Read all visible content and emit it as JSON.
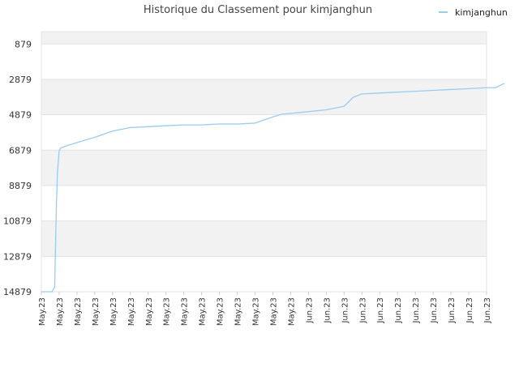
{
  "chart_data": {
    "type": "line",
    "title": "Historique du Classement pour kimjanghun",
    "xlabel": "",
    "ylabel": "",
    "y_inverted": true,
    "ylim": [
      14879,
      179
    ],
    "yticks": [
      879,
      2879,
      4879,
      6879,
      8879,
      10879,
      12879,
      14879
    ],
    "xtick_labels": [
      "May.23",
      "May.23",
      "May.23",
      "May.23",
      "May.23",
      "May.23",
      "May.23",
      "May.23",
      "May.23",
      "May.23",
      "May.23",
      "May.23",
      "May.23",
      "May.23",
      "May.23",
      "Jun.23",
      "Jun.23",
      "Jun.23",
      "Jun.23",
      "Jun.23",
      "Jun.23",
      "Jun.23",
      "Jun.23",
      "Jun.23",
      "Jun.23",
      "Jun.23"
    ],
    "grid": true,
    "legend": {
      "position": "top-right"
    },
    "series": [
      {
        "name": "kimjanghun",
        "color": "#99ccee",
        "x": [
          0.0,
          0.6,
          0.75,
          0.8,
          0.85,
          0.9,
          1.0,
          1.1,
          1.5,
          3.0,
          4.0,
          5.0,
          6.0,
          7.0,
          8.0,
          9.0,
          10.0,
          11.0,
          12.0,
          13.0,
          13.5,
          14.0,
          14.5,
          15.0,
          16.0,
          17.0,
          17.5,
          18.0,
          19.0,
          20.0,
          21.0,
          22.0,
          23.0,
          24.0,
          25.0,
          25.5,
          26.0
        ],
        "y": [
          14879,
          14879,
          14600,
          12000,
          9800,
          8200,
          6900,
          6750,
          6600,
          6150,
          5800,
          5600,
          5550,
          5500,
          5450,
          5450,
          5400,
          5400,
          5350,
          5000,
          4850,
          4800,
          4750,
          4700,
          4600,
          4400,
          3900,
          3700,
          3650,
          3600,
          3550,
          3500,
          3450,
          3400,
          3350,
          3350,
          3100
        ]
      }
    ]
  }
}
